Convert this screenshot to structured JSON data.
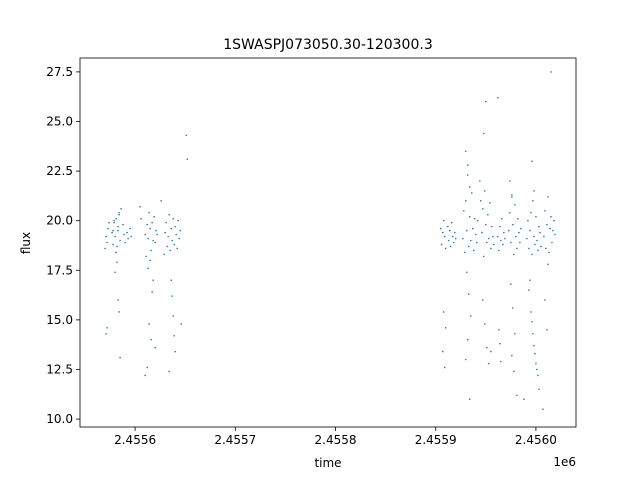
{
  "chart_data": {
    "type": "scatter",
    "title": "1SWASPJ073050.30-120300.3",
    "xlabel": "time",
    "ylabel": "flux",
    "x_offset_label": "1e6",
    "xlim": [
      2455545,
      2456040
    ],
    "ylim": [
      9.6,
      28.2
    ],
    "x_ticks": [
      2455600,
      2455700,
      2455800,
      2455900,
      2456000
    ],
    "x_tick_labels": [
      "2.4556",
      "2.4557",
      "2.4558",
      "2.4559",
      "2.4560"
    ],
    "y_ticks": [
      10.0,
      12.5,
      15.0,
      17.5,
      20.0,
      22.5,
      25.0,
      27.5
    ],
    "y_tick_labels": [
      "10.0",
      "12.5",
      "15.0",
      "17.5",
      "20.0",
      "22.5",
      "25.0",
      "27.5"
    ],
    "grid": false,
    "legend": "none",
    "marker_color": "#1f77b4",
    "series": [
      {
        "x": [
          2455570,
          2455571,
          2455572,
          2455573,
          2455574,
          2455577,
          2455578,
          2455579,
          2455580,
          2455581,
          2455582,
          2455583,
          2455584,
          2455585,
          2455586,
          2455588,
          2455589,
          2455590,
          2455592,
          2455593,
          2455595,
          2455596,
          2455578,
          2455579,
          2455581,
          2455583,
          2455584,
          2455580,
          2455582,
          2455571,
          2455572,
          2455583,
          2455584,
          2455585,
          2455610,
          2455611,
          2455612,
          2455613,
          2455614,
          2455615,
          2455616,
          2455617,
          2455618,
          2455619,
          2455620,
          2455621,
          2455622,
          2455613,
          2455615,
          2455618,
          2455617,
          2455614,
          2455616,
          2455610,
          2455612,
          2455620,
          2455605,
          2455606,
          2455629,
          2455630,
          2455631,
          2455632,
          2455633,
          2455634,
          2455635,
          2455636,
          2455637,
          2455638,
          2455639,
          2455640,
          2455641,
          2455642,
          2455643,
          2455644,
          2455645,
          2455636,
          2455637,
          2455638,
          2455639,
          2455640,
          2455634,
          2455626,
          2455651,
          2455652,
          2455646,
          2455905,
          2455906,
          2455907,
          2455908,
          2455909,
          2455910,
          2455912,
          2455913,
          2455914,
          2455915,
          2455916,
          2455917,
          2455918,
          2455919,
          2455920,
          2455908,
          2455910,
          2455907,
          2455909,
          2455927,
          2455928,
          2455929,
          2455930,
          2455931,
          2455932,
          2455933,
          2455934,
          2455935,
          2455936,
          2455937,
          2455938,
          2455939,
          2455940,
          2455941,
          2455942,
          2455930,
          2455932,
          2455934,
          2455931,
          2455933,
          2455935,
          2455932,
          2455930,
          2455934,
          2455946,
          2455947,
          2455948,
          2455949,
          2455950,
          2455951,
          2455952,
          2455953,
          2455954,
          2455955,
          2455956,
          2455957,
          2455958,
          2455947,
          2455949,
          2455951,
          2455953,
          2455955,
          2455950,
          2455948,
          2455944,
          2455945,
          2455962,
          2455963,
          2455964,
          2455965,
          2455966,
          2455967,
          2455968,
          2455969,
          2455962,
          2455963,
          2455965,
          2455964,
          2455973,
          2455974,
          2455975,
          2455976,
          2455977,
          2455978,
          2455979,
          2455980,
          2455981,
          2455982,
          2455983,
          2455984,
          2455985,
          2455975,
          2455977,
          2455979,
          2455976,
          2455978,
          2455974,
          2455976,
          2455981,
          2455991,
          2455992,
          2455993,
          2455994,
          2455995,
          2455996,
          2455997,
          2455998,
          2455999,
          2456000,
          2456001,
          2456002,
          2456003,
          2456004,
          2456005,
          2455993,
          2455995,
          2455997,
          2455999,
          2456001,
          2456003,
          2455994,
          2455996,
          2455998,
          2456000,
          2456002,
          2455996,
          2455998,
          2455988,
          2456008,
          2456009,
          2456010,
          2456011,
          2456012,
          2456013,
          2456014,
          2456015,
          2456016,
          2456017,
          2456018,
          2456019,
          2456009,
          2456011,
          2456007,
          2456015,
          2456012
        ],
        "y": [
          18.6,
          19.2,
          18.9,
          19.6,
          19.9,
          19.4,
          18.8,
          19.9,
          19.2,
          20.1,
          18.7,
          19.5,
          20.3,
          19.0,
          20.6,
          19.8,
          19.3,
          18.9,
          19.4,
          19.1,
          19.6,
          19.2,
          19.5,
          20.0,
          18.4,
          19.7,
          20.4,
          17.4,
          17.9,
          14.3,
          14.6,
          16.0,
          15.4,
          13.1,
          19.3,
          18.2,
          19.8,
          19.1,
          20.4,
          19.6,
          18.5,
          19.9,
          19.0,
          20.2,
          18.9,
          19.5,
          19.3,
          17.6,
          18.0,
          17.0,
          16.4,
          14.8,
          14.0,
          12.2,
          12.6,
          13.6,
          20.7,
          20.1,
          18.3,
          19.4,
          19.9,
          18.7,
          19.2,
          20.3,
          18.5,
          19.6,
          19.0,
          20.1,
          18.8,
          19.7,
          19.3,
          18.6,
          20.0,
          19.1,
          19.5,
          17.0,
          16.2,
          15.2,
          14.2,
          13.4,
          12.4,
          21.0,
          24.3,
          23.1,
          14.8,
          19.6,
          18.8,
          19.4,
          20.0,
          19.2,
          18.6,
          19.7,
          19.0,
          19.5,
          18.7,
          19.9,
          19.2,
          18.9,
          19.4,
          19.1,
          15.4,
          14.6,
          13.4,
          12.6,
          19.1,
          20.5,
          18.4,
          21.0,
          19.5,
          22.3,
          18.7,
          20.2,
          19.0,
          21.4,
          19.6,
          18.5,
          20.1,
          19.3,
          18.9,
          20.0,
          23.5,
          22.8,
          21.7,
          17.4,
          16.3,
          15.2,
          14.0,
          13.0,
          11.0,
          19.4,
          20.6,
          18.2,
          21.5,
          19.8,
          18.9,
          20.3,
          19.1,
          20.9,
          18.6,
          19.7,
          19.2,
          18.8,
          16.0,
          14.8,
          13.6,
          12.8,
          13.4,
          26.0,
          24.4,
          22.0,
          21.0,
          19.2,
          18.5,
          19.7,
          19.0,
          20.1,
          18.8,
          19.4,
          19.1,
          26.2,
          14.5,
          12.9,
          13.8,
          19.5,
          20.4,
          18.9,
          21.3,
          19.8,
          18.3,
          20.8,
          19.2,
          18.6,
          20.1,
          19.4,
          18.9,
          19.6,
          16.8,
          15.6,
          14.3,
          13.2,
          12.4,
          22.0,
          21.2,
          11.2,
          19.1,
          20.0,
          18.6,
          19.5,
          20.4,
          18.3,
          21.0,
          19.2,
          18.8,
          20.2,
          19.0,
          18.5,
          19.7,
          19.4,
          18.7,
          16.5,
          15.4,
          14.3,
          13.3,
          12.5,
          11.5,
          17.0,
          14.9,
          13.7,
          12.8,
          12.2,
          23.0,
          21.5,
          11.0,
          19.2,
          20.5,
          18.6,
          19.8,
          21.2,
          18.4,
          19.6,
          20.2,
          18.9,
          19.5,
          20.0,
          19.3,
          16.0,
          14.5,
          10.5,
          27.5,
          17.8
        ]
      }
    ]
  }
}
